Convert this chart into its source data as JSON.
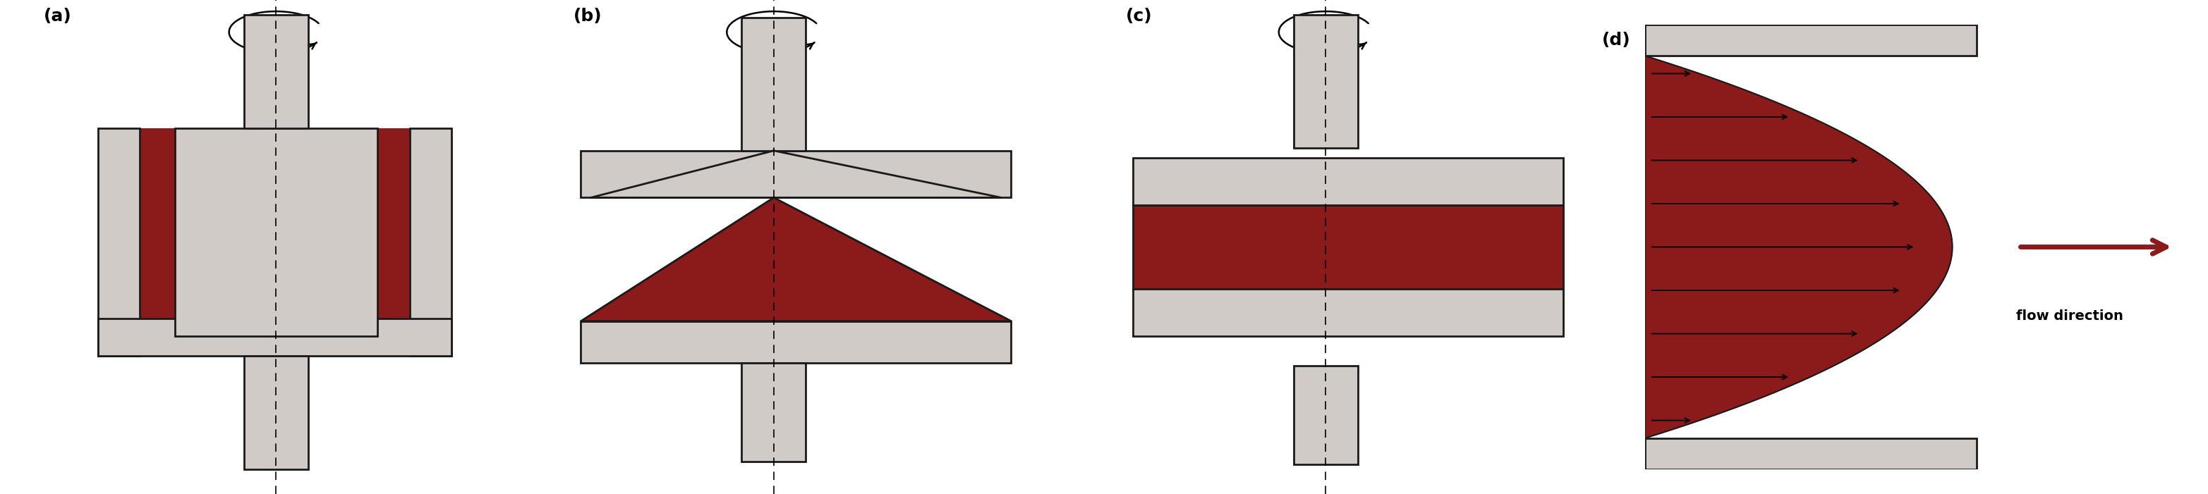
{
  "background_color": "#ffffff",
  "gray_fill": "#d0cbc6",
  "gray_edge": "#1a1a1a",
  "red_fill": "#8b1a1a",
  "label_fontsize": 18,
  "label_fontweight": "bold",
  "fig_width": 31.3,
  "fig_height": 7.01,
  "labels": [
    "(a)",
    "(b)",
    "(c)",
    "(d)"
  ],
  "flow_direction_text": "flow direction"
}
